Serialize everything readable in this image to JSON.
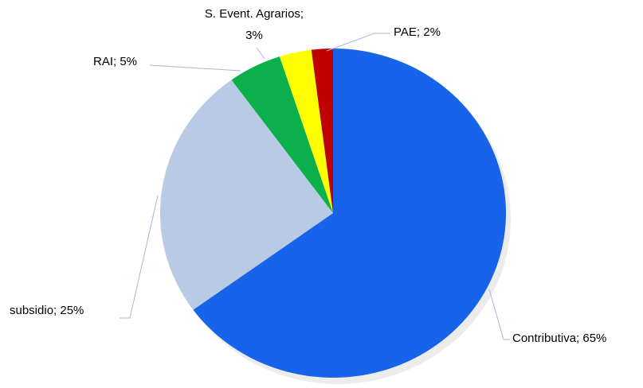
{
  "chart_data": {
    "type": "pie",
    "values": [
      65,
      25,
      5,
      3,
      2
    ],
    "value_labels": [
      "Contributiva; 65%",
      "subsidio; 25%",
      "RAI; 5%",
      "S. Event. Agrarios; 3%",
      "PAE; 2%"
    ],
    "colors": [
      "#1763ea",
      "#b9cae4",
      "#0bb04c",
      "#ffff00",
      "#c00000"
    ]
  }
}
